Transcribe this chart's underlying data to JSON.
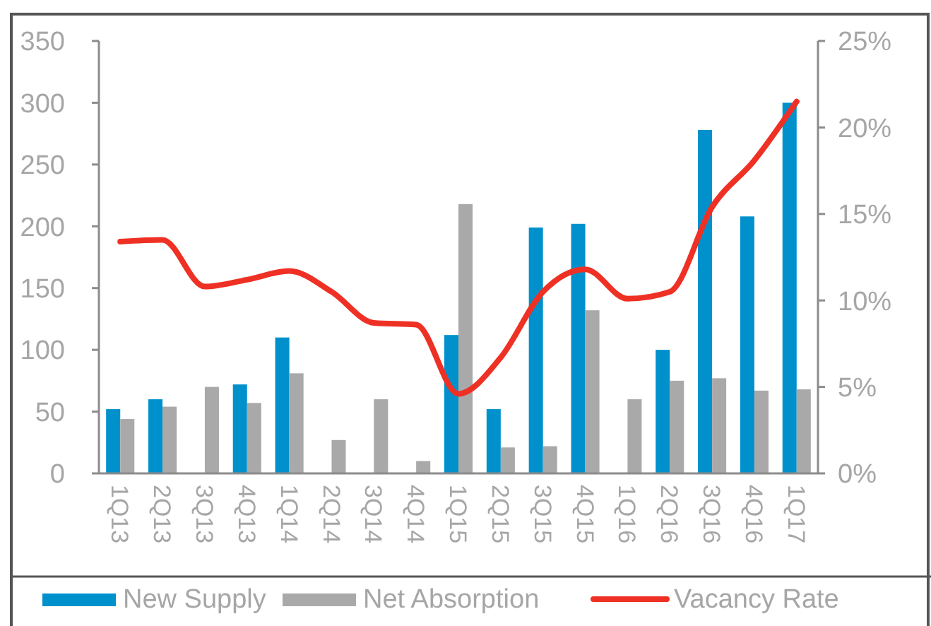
{
  "chart_data": {
    "type": "bar",
    "categories": [
      "1Q13",
      "2Q13",
      "3Q13",
      "4Q13",
      "1Q14",
      "2Q14",
      "3Q14",
      "4Q14",
      "1Q15",
      "2Q15",
      "3Q15",
      "4Q15",
      "1Q16",
      "2Q16",
      "3Q16",
      "4Q16",
      "1Q17"
    ],
    "series": [
      {
        "name": "New Supply",
        "color": "#0091cd",
        "values": [
          52,
          60,
          0,
          72,
          110,
          0,
          0,
          0,
          112,
          52,
          199,
          202,
          0,
          100,
          278,
          208,
          300
        ]
      },
      {
        "name": "Net Absorption",
        "color": "#a9a9a9",
        "values": [
          44,
          54,
          70,
          57,
          81,
          27,
          60,
          10,
          218,
          21,
          22,
          132,
          60,
          75,
          77,
          67,
          68
        ]
      },
      {
        "name": "Vacancy Rate",
        "type": "line",
        "axis": "y2",
        "color": "#ee3124",
        "values": [
          13.4,
          13.5,
          10.8,
          11.2,
          11.7,
          10.5,
          8.7,
          8.6,
          4.6,
          6.7,
          10.5,
          11.8,
          10.1,
          10.5,
          15.4,
          18.1,
          21.5
        ]
      }
    ],
    "ylim": [
      0,
      350
    ],
    "yticks": [
      0,
      50,
      100,
      150,
      200,
      250,
      300,
      350
    ],
    "y2lim": [
      0,
      25
    ],
    "y2ticks": [
      {
        "value": 0,
        "label": "0%"
      },
      {
        "value": 5,
        "label": "5%"
      },
      {
        "value": 10,
        "label": "10%"
      },
      {
        "value": 15,
        "label": "15%"
      },
      {
        "value": 20,
        "label": "20%"
      },
      {
        "value": 25,
        "label": "25%"
      }
    ],
    "grid": false,
    "legend": "bottom"
  }
}
